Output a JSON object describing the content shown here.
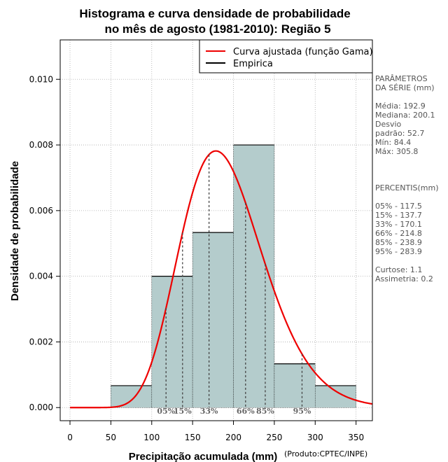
{
  "chart_data": {
    "type": "bar",
    "title_line1": "Histograma e curva densidade de probabilidade",
    "title_line2": "no mês de agosto (1981-2010): Região 5",
    "xlabel": "Precipitação acumulada (mm)",
    "ylabel": "Densidade de probabilidade",
    "credit": "(Produto:CPTEC/INPE)",
    "xlim": [
      -12,
      370
    ],
    "ylim": [
      -0.0004,
      0.0112
    ],
    "x_ticks": [
      0,
      50,
      100,
      150,
      200,
      250,
      300,
      350
    ],
    "y_ticks": [
      0.0,
      0.002,
      0.004,
      0.006,
      0.008,
      0.01
    ],
    "y_tick_labels": [
      "0.000",
      "0.002",
      "0.004",
      "0.006",
      "0.008",
      "0.010"
    ],
    "grid": true,
    "bins": [
      {
        "from": 50,
        "to": 100,
        "density": 0.000667
      },
      {
        "from": 100,
        "to": 150,
        "density": 0.004
      },
      {
        "from": 150,
        "to": 200,
        "density": 0.005333
      },
      {
        "from": 200,
        "to": 250,
        "density": 0.008
      },
      {
        "from": 250,
        "to": 300,
        "density": 0.001333
      },
      {
        "from": 300,
        "to": 350,
        "density": 0.000667
      }
    ],
    "bar_color": "#b4cccc",
    "curve_color": "#ee0000",
    "gamma_fit": {
      "mean": 192.9,
      "sd": 52.7
    },
    "percentile_lines": [
      {
        "label": "05%",
        "value": 117.5
      },
      {
        "label": "15%",
        "value": 137.7
      },
      {
        "label": "33%",
        "value": 170.1
      },
      {
        "label": "66%",
        "value": 214.8
      },
      {
        "label": "85%",
        "value": 238.9
      },
      {
        "label": "95%",
        "value": 283.9
      }
    ],
    "legend": {
      "position": "top-right",
      "entries": [
        {
          "label": "Curva ajustada (função Gama)",
          "color": "#ee0000"
        },
        {
          "label": "Empirica",
          "color": "#000000"
        }
      ]
    },
    "side_panel": {
      "lines": [
        "PARÂMETROS",
        " DA SÉRIE (mm)",
        "",
        "Média:  192.9",
        "Mediana:  200.1",
        "Desvio",
        "padrão:  52.7",
        "Mín:  84.4",
        "Máx:  305.8",
        "",
        "",
        "",
        " PERCENTIS(mm)",
        "",
        "05% -  117.5",
        "15% -  137.7",
        "33% -  170.1",
        "66% -  214.8",
        "85% -  238.9",
        "95% -  283.9",
        "",
        "Curtose:  1.1",
        "Assimetria:  0.2"
      ]
    }
  }
}
